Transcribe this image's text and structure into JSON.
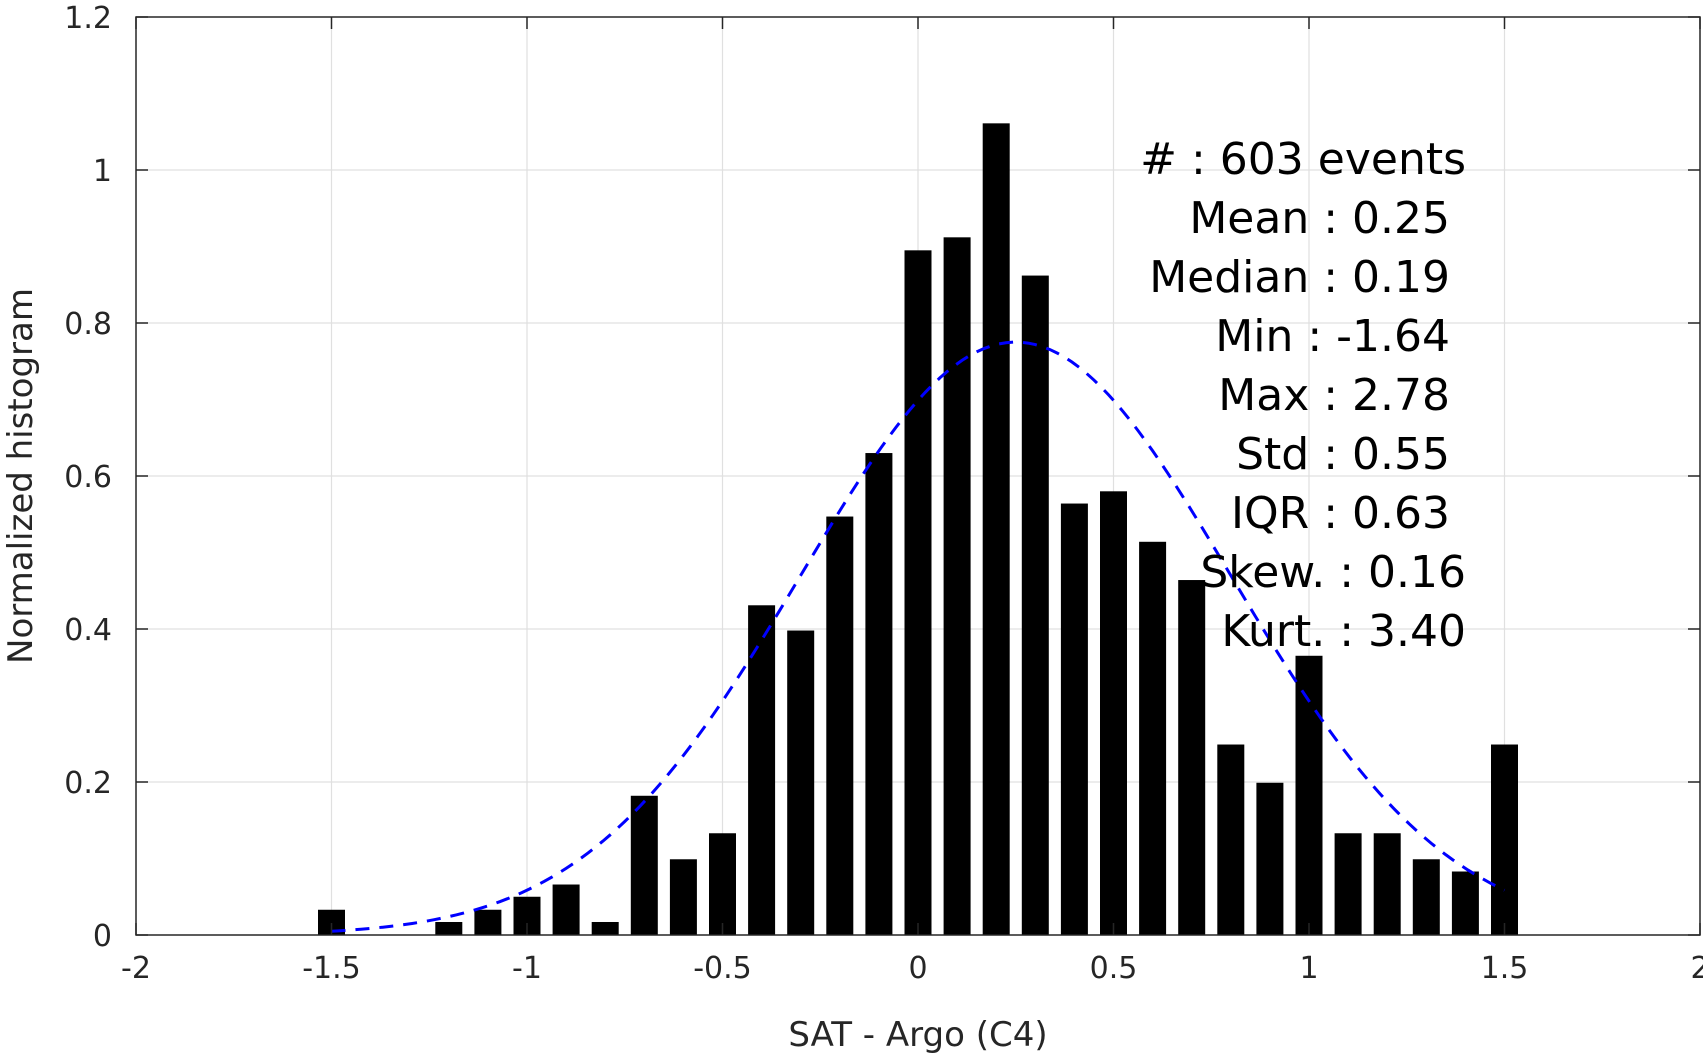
{
  "chart_data": {
    "type": "bar",
    "xlabel": "SAT - Argo (C4)",
    "ylabel": "Normalized histogram",
    "xlim": [
      -2,
      2
    ],
    "ylim": [
      0,
      1.2
    ],
    "grid": true,
    "x_ticks": [
      -2,
      -1.5,
      -1,
      -0.5,
      0,
      0.5,
      1,
      1.5,
      2
    ],
    "x_tick_labels": [
      "-2",
      "-1.5",
      "-1",
      "-0.5",
      "0",
      "0.5",
      "1",
      "1.5",
      "2"
    ],
    "y_ticks": [
      0,
      0.2,
      0.4,
      0.6,
      0.8,
      1,
      1.2
    ],
    "y_tick_labels": [
      "0",
      "0.2",
      "0.4",
      "0.6",
      "0.8",
      "1",
      "1.2"
    ],
    "bin_width": 0.1,
    "bar_color": "#000000",
    "bins": [
      {
        "x": -1.5,
        "y": 0.033
      },
      {
        "x": -1.2,
        "y": 0.017
      },
      {
        "x": -1.1,
        "y": 0.033
      },
      {
        "x": -1.0,
        "y": 0.05
      },
      {
        "x": -0.9,
        "y": 0.066
      },
      {
        "x": -0.8,
        "y": 0.017
      },
      {
        "x": -0.7,
        "y": 0.182
      },
      {
        "x": -0.6,
        "y": 0.099
      },
      {
        "x": -0.5,
        "y": 0.133
      },
      {
        "x": -0.4,
        "y": 0.431
      },
      {
        "x": -0.3,
        "y": 0.398
      },
      {
        "x": -0.2,
        "y": 0.547
      },
      {
        "x": -0.1,
        "y": 0.63
      },
      {
        "x": 0.0,
        "y": 0.895
      },
      {
        "x": 0.1,
        "y": 0.912
      },
      {
        "x": 0.2,
        "y": 1.061
      },
      {
        "x": 0.3,
        "y": 0.862
      },
      {
        "x": 0.4,
        "y": 0.564
      },
      {
        "x": 0.5,
        "y": 0.58
      },
      {
        "x": 0.6,
        "y": 0.514
      },
      {
        "x": 0.7,
        "y": 0.464
      },
      {
        "x": 0.8,
        "y": 0.249
      },
      {
        "x": 0.9,
        "y": 0.199
      },
      {
        "x": 1.0,
        "y": 0.365
      },
      {
        "x": 1.1,
        "y": 0.133
      },
      {
        "x": 1.2,
        "y": 0.133
      },
      {
        "x": 1.3,
        "y": 0.099
      },
      {
        "x": 1.4,
        "y": 0.083
      },
      {
        "x": 1.5,
        "y": 0.249
      }
    ],
    "fit_curve": {
      "style": "dashed",
      "color": "#0000ff",
      "mean": 0.25,
      "std": 0.55,
      "peak": 0.775,
      "x_range": [
        -1.5,
        1.5
      ]
    },
    "stats_annotation": [
      "#  : 603 events",
      "Mean : 0.25",
      "Median : 0.19",
      "Min : -1.64",
      "Max : 2.78",
      "Std : 0.55",
      "IQR : 0.63",
      "Skew. : 0.16",
      "Kurt. : 3.40"
    ]
  }
}
